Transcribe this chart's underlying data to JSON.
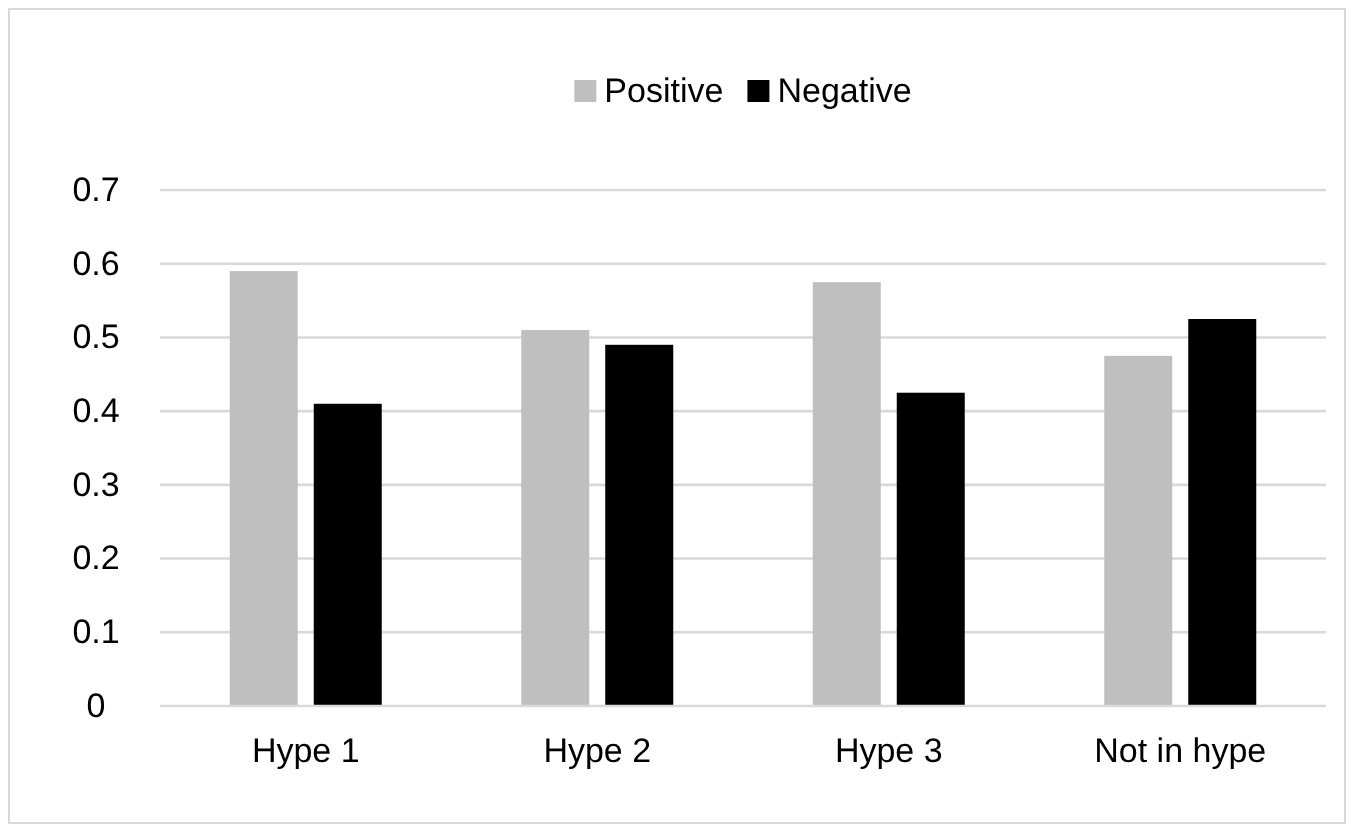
{
  "chart_data": {
    "type": "bar",
    "categories": [
      "Hype 1",
      "Hype 2",
      "Hype 3",
      "Not in hype"
    ],
    "series": [
      {
        "name": "Positive",
        "color": "#bfbfbf",
        "values": [
          0.59,
          0.51,
          0.575,
          0.475
        ]
      },
      {
        "name": "Negative",
        "color": "#000000",
        "values": [
          0.41,
          0.49,
          0.425,
          0.525
        ]
      }
    ],
    "ylim": [
      0,
      0.7
    ],
    "yticks": [
      0,
      0.1,
      0.2,
      0.3,
      0.4,
      0.5,
      0.6,
      0.7
    ],
    "grid": "y",
    "legend": "top"
  }
}
